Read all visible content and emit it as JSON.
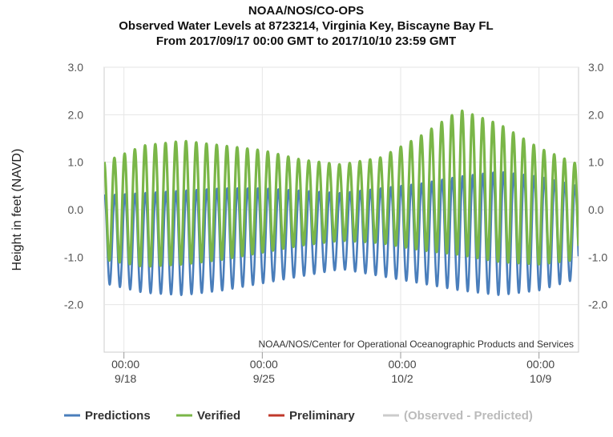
{
  "chart_data": {
    "type": "line",
    "title": "NOAA/NOS/CO-OPS",
    "subtitle_1": "Observed Water Levels at 8723214, Virginia Key, Biscayne Bay FL",
    "subtitle_2": "From 2017/09/17 00:00 GMT to 2017/10/10 23:59 GMT",
    "ylabel": "Height in feet (NAVD)",
    "ylim": [
      -3.0,
      3.0
    ],
    "y_ticks": [
      3.0,
      2.0,
      1.0,
      0.0,
      -1.0,
      -2.0
    ],
    "y_tick_labels": [
      "3.0",
      "2.0",
      "1.0",
      "0.0",
      "-1.0",
      "-2.0"
    ],
    "x_range_days": [
      0,
      24
    ],
    "x_ticks": [
      {
        "day": 1,
        "time": "00:00",
        "date": "9/18"
      },
      {
        "day": 8,
        "time": "00:00",
        "date": "9/25"
      },
      {
        "day": 15,
        "time": "00:00",
        "date": "10/2"
      },
      {
        "day": 22,
        "time": "00:00",
        "date": "10/9"
      }
    ],
    "tide_period_hours": 12.42,
    "series": [
      {
        "name": "Predictions",
        "color": "#4a7ebb",
        "x_days": [
          0,
          2,
          4,
          6,
          8,
          10,
          12,
          14,
          16,
          18,
          20,
          22,
          24
        ],
        "highs": [
          0.3,
          0.35,
          0.4,
          0.45,
          0.45,
          0.4,
          0.35,
          0.45,
          0.55,
          0.7,
          0.8,
          0.7,
          0.5
        ],
        "lows": [
          -1.55,
          -1.75,
          -1.8,
          -1.7,
          -1.55,
          -1.4,
          -1.25,
          -1.4,
          -1.55,
          -1.7,
          -1.8,
          -1.7,
          -1.45
        ]
      },
      {
        "name": "Verified",
        "color": "#7ab648",
        "x_days": [
          0,
          2,
          4,
          6,
          8,
          10,
          12,
          14,
          16,
          18,
          20,
          22,
          24
        ],
        "highs": [
          1.0,
          1.35,
          1.45,
          1.35,
          1.25,
          1.05,
          0.95,
          1.1,
          1.55,
          2.1,
          1.8,
          1.3,
          0.95
        ],
        "lows": [
          -1.05,
          -1.2,
          -1.15,
          -1.05,
          -0.9,
          -0.75,
          -0.65,
          -0.7,
          -0.85,
          -0.95,
          -1.1,
          -1.15,
          -1.05
        ]
      }
    ],
    "credit": "NOAA/NOS/Center for Operational Oceanographic Products and Services",
    "legend": [
      {
        "label": "Predictions",
        "color": "#4a7ebb",
        "muted": false
      },
      {
        "label": "Verified",
        "color": "#7ab648",
        "muted": false
      },
      {
        "label": "Preliminary",
        "color": "#c0392b",
        "muted": false
      },
      {
        "label": "(Observed - Predicted)",
        "color": "#cccccc",
        "muted": true
      }
    ]
  }
}
